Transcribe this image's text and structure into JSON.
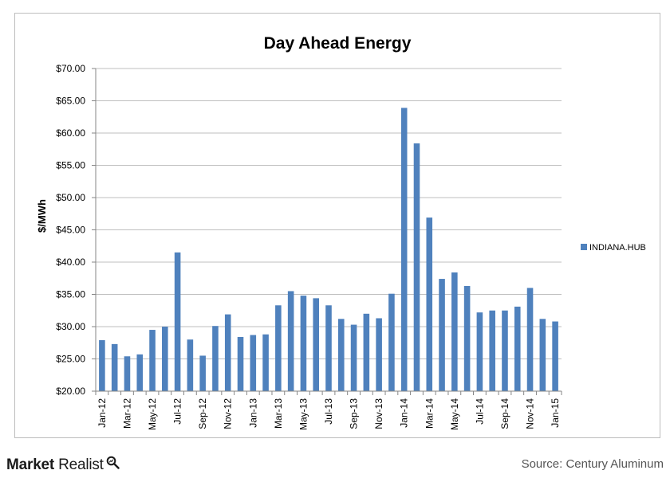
{
  "brand": {
    "word1": "Market",
    "word2": "Realist"
  },
  "source": "Source:  Century  Aluminum",
  "colors": {
    "bar": "#4f81bd",
    "grid": "#bfbfbf",
    "axis": "#868686"
  },
  "chart_data": {
    "type": "bar",
    "title": "Day Ahead Energy",
    "xlabel": "",
    "ylabel": "$/MWh",
    "ylim": [
      20,
      70
    ],
    "yticks": [
      "$20.00",
      "$25.00",
      "$30.00",
      "$35.00",
      "$40.00",
      "$45.00",
      "$50.00",
      "$55.00",
      "$60.00",
      "$65.00",
      "$70.00"
    ],
    "grid": true,
    "legend_position": "right",
    "categories": [
      "Jan-12",
      "Feb-12",
      "Mar-12",
      "Apr-12",
      "May-12",
      "Jun-12",
      "Jul-12",
      "Aug-12",
      "Sep-12",
      "Oct-12",
      "Nov-12",
      "Dec-12",
      "Jan-13",
      "Feb-13",
      "Mar-13",
      "Apr-13",
      "May-13",
      "Jun-13",
      "Jul-13",
      "Aug-13",
      "Sep-13",
      "Oct-13",
      "Nov-13",
      "Dec-13",
      "Jan-14",
      "Feb-14",
      "Mar-14",
      "Apr-14",
      "May-14",
      "Jun-14",
      "Jul-14",
      "Aug-14",
      "Sep-14",
      "Oct-14",
      "Nov-14",
      "Dec-14",
      "Jan-15"
    ],
    "tick_labels": [
      "Jan-12",
      "",
      "Mar-12",
      "",
      "May-12",
      "",
      "Jul-12",
      "",
      "Sep-12",
      "",
      "Nov-12",
      "",
      "Jan-13",
      "",
      "Mar-13",
      "",
      "May-13",
      "",
      "Jul-13",
      "",
      "Sep-13",
      "",
      "Nov-13",
      "",
      "Jan-14",
      "",
      "Mar-14",
      "",
      "May-14",
      "",
      "Jul-14",
      "",
      "Sep-14",
      "",
      "Nov-14",
      "",
      "Jan-15"
    ],
    "series": [
      {
        "name": "INDIANA.HUB",
        "values": [
          27.9,
          27.3,
          25.4,
          25.7,
          29.5,
          30.0,
          41.5,
          28.0,
          25.5,
          30.1,
          31.9,
          28.4,
          28.7,
          28.8,
          33.3,
          35.5,
          34.8,
          34.4,
          33.3,
          31.2,
          30.3,
          32.0,
          31.3,
          35.1,
          63.9,
          58.4,
          46.9,
          37.4,
          38.4,
          36.3,
          32.2,
          32.5,
          32.5,
          33.1,
          36.0,
          31.2,
          30.8
        ]
      }
    ]
  }
}
